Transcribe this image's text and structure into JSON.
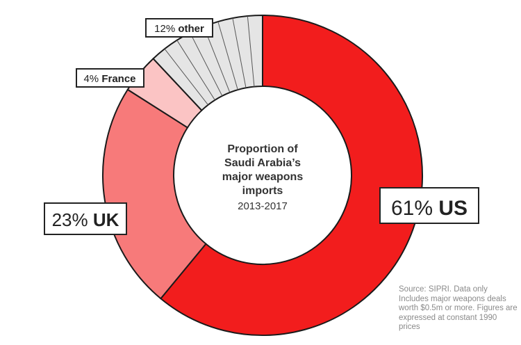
{
  "chart_data": {
    "type": "pie",
    "variant": "donut",
    "center_title_lines": [
      "Proportion of",
      "Saudi Arabia’s",
      "major weapons",
      "imports"
    ],
    "center_subtitle": "2013-2017",
    "slices": [
      {
        "name": "US",
        "pct_label": "61%",
        "value": 61,
        "color": "#f21d1d"
      },
      {
        "name": "UK",
        "pct_label": "23%",
        "value": 23,
        "color": "#f77a7a"
      },
      {
        "name": "France",
        "pct_label": "4%",
        "value": 4,
        "color": "#fbc4c4"
      },
      {
        "name": "other",
        "pct_label": "12%",
        "value": 12,
        "color": "#e5e5e5"
      }
    ],
    "other_hatch_segments": 8,
    "source_note": "Source: SIPRI. Data only Includes major weapons deals worth $0.5m or more. Figures are expressed at constant 1990 prices"
  }
}
